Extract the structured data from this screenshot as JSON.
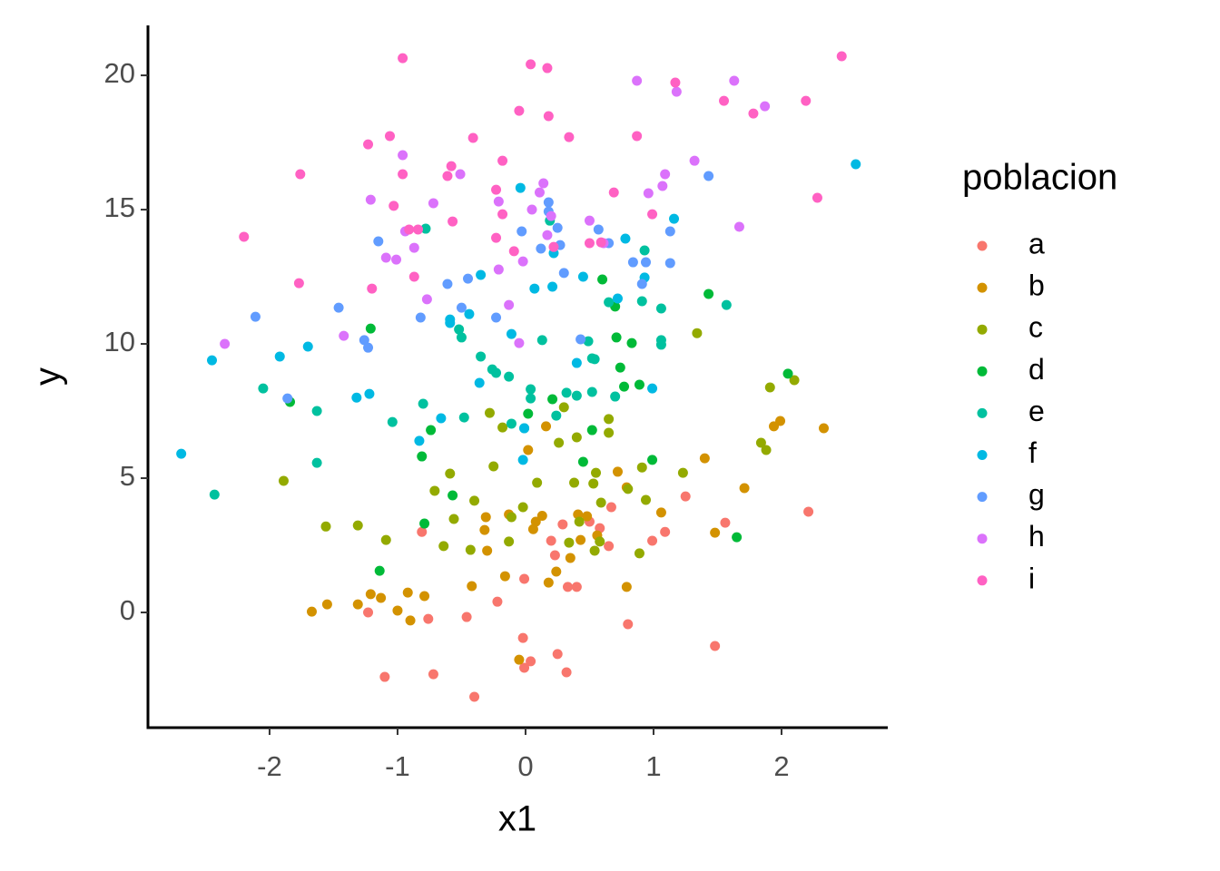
{
  "chart_data": {
    "type": "scatter",
    "x_label": "x1",
    "y_label": "y",
    "legend_title": "poblacion",
    "xlim": [
      -2.95,
      2.83
    ],
    "ylim": [
      -4.29,
      21.86
    ],
    "xticks": [
      -2,
      -1,
      0,
      1,
      2
    ],
    "yticks": [
      0,
      5,
      10,
      15,
      20
    ],
    "grid": false,
    "legend": "right",
    "series": [
      {
        "name": "a",
        "color": "#F8766D",
        "x": [
          -0.81,
          -1.23,
          -1.1,
          -0.76,
          -0.72,
          -0.46,
          -0.4,
          -0.22,
          -0.01,
          -0.02,
          -0.01,
          0.04,
          0.2,
          0.23,
          0.25,
          0.29,
          0.32,
          0.33,
          0.4,
          0.5,
          0.58,
          0.65,
          0.67,
          0.8,
          0.99,
          1.09,
          1.25,
          1.48,
          1.56,
          2.21
        ],
        "y": [
          3.0,
          0.0,
          -2.4,
          -0.24,
          -2.3,
          -0.17,
          -3.14,
          0.4,
          1.25,
          -0.95,
          -2.06,
          -1.82,
          2.67,
          2.13,
          -1.55,
          3.28,
          -2.23,
          0.95,
          0.95,
          3.38,
          3.14,
          2.47,
          3.92,
          -0.44,
          2.67,
          3.0,
          4.32,
          -1.25,
          3.34,
          3.75
        ]
      },
      {
        "name": "b",
        "color": "#D39200",
        "x": [
          -1.67,
          -1.55,
          -1.31,
          -1.21,
          -1.13,
          -1.0,
          -0.92,
          -0.9,
          -0.79,
          -0.42,
          -0.32,
          -0.31,
          -0.3,
          -0.16,
          -0.13,
          -0.05,
          0.02,
          0.06,
          0.08,
          0.13,
          0.16,
          0.18,
          0.24,
          0.35,
          0.41,
          0.43,
          0.48,
          0.56,
          0.72,
          0.79,
          0.79,
          1.06,
          1.4,
          1.48,
          1.71,
          1.94,
          1.99,
          2.33
        ],
        "y": [
          0.03,
          0.3,
          0.3,
          0.68,
          0.54,
          0.07,
          0.74,
          -0.3,
          0.61,
          0.98,
          3.07,
          3.55,
          2.3,
          1.35,
          3.65,
          -1.76,
          6.05,
          3.1,
          3.38,
          3.6,
          6.93,
          1.11,
          1.52,
          2.03,
          3.65,
          2.7,
          3.58,
          2.87,
          5.24,
          0.95,
          4.66,
          3.72,
          5.74,
          2.97,
          4.63,
          6.93,
          7.13,
          6.86
        ]
      },
      {
        "name": "c",
        "color": "#93AA00",
        "x": [
          -1.89,
          -1.56,
          -1.31,
          -1.09,
          -0.71,
          -0.59,
          -0.56,
          -0.64,
          -0.43,
          -0.4,
          -0.28,
          -0.25,
          -0.18,
          -0.13,
          -0.11,
          -0.02,
          0.09,
          0.26,
          0.3,
          0.34,
          0.38,
          0.4,
          0.42,
          0.53,
          0.55,
          0.54,
          0.58,
          0.59,
          0.65,
          0.65,
          0.8,
          0.89,
          0.91,
          0.94,
          1.23,
          1.34,
          1.84,
          1.88,
          1.91,
          2.1
        ],
        "y": [
          4.9,
          3.2,
          3.24,
          2.7,
          4.53,
          5.17,
          3.48,
          2.47,
          2.33,
          4.16,
          7.43,
          5.44,
          6.89,
          2.64,
          3.55,
          3.92,
          4.83,
          6.32,
          7.64,
          2.6,
          4.83,
          6.52,
          3.38,
          4.8,
          5.2,
          2.3,
          2.64,
          4.09,
          7.2,
          6.69,
          4.6,
          2.2,
          5.4,
          4.19,
          5.2,
          10.4,
          6.32,
          6.05,
          8.38,
          8.65
        ]
      },
      {
        "name": "d",
        "color": "#00BA38",
        "x": [
          -1.84,
          -1.21,
          -1.14,
          -0.81,
          -0.79,
          -0.74,
          -0.57,
          0.02,
          0.21,
          0.45,
          0.52,
          0.6,
          0.7,
          0.71,
          0.74,
          0.77,
          0.83,
          0.89,
          0.99,
          1.43,
          1.65,
          2.05
        ],
        "y": [
          7.84,
          10.57,
          1.55,
          5.81,
          3.31,
          6.79,
          4.36,
          7.4,
          7.94,
          5.61,
          6.79,
          12.4,
          11.39,
          10.24,
          9.12,
          8.41,
          10.03,
          8.48,
          5.68,
          11.86,
          2.8,
          8.89
        ]
      },
      {
        "name": "e",
        "color": "#00C19F",
        "x": [
          -2.43,
          -2.05,
          -1.63,
          -1.63,
          -1.04,
          -0.8,
          -0.78,
          -0.52,
          -0.5,
          -0.48,
          -0.35,
          -0.26,
          -0.23,
          -0.13,
          -0.11,
          -0.01,
          0.04,
          0.04,
          0.13,
          0.19,
          0.24,
          0.32,
          0.4,
          0.49,
          0.52,
          0.52,
          0.54,
          0.65,
          0.7,
          0.91,
          0.93,
          1.06,
          1.06,
          1.06,
          1.57
        ],
        "y": [
          4.39,
          8.34,
          7.5,
          5.57,
          7.09,
          7.77,
          14.29,
          10.54,
          10.24,
          7.26,
          9.53,
          9.05,
          8.92,
          8.78,
          7.03,
          6.86,
          8.31,
          7.97,
          10.14,
          14.59,
          7.33,
          8.18,
          8.07,
          10.1,
          9.46,
          8.21,
          9.43,
          11.55,
          8.04,
          11.59,
          13.48,
          11.32,
          10.14,
          9.97,
          11.45
        ]
      },
      {
        "name": "f",
        "color": "#00B9E3",
        "x": [
          -2.69,
          -2.45,
          -1.92,
          -1.7,
          -1.32,
          -1.22,
          -0.83,
          -0.66,
          -0.59,
          -0.59,
          -0.44,
          -0.36,
          -0.35,
          -0.11,
          -0.04,
          -0.02,
          -0.01,
          0.07,
          0.21,
          0.22,
          0.4,
          0.45,
          0.72,
          0.78,
          0.93,
          0.99,
          1.16,
          2.58
        ],
        "y": [
          5.91,
          9.39,
          9.53,
          9.9,
          8.0,
          8.14,
          6.39,
          7.23,
          10.91,
          10.78,
          11.11,
          8.55,
          12.57,
          10.37,
          15.81,
          5.68,
          6.86,
          12.06,
          12.13,
          13.38,
          9.29,
          12.5,
          11.69,
          13.92,
          12.47,
          8.34,
          14.66,
          16.69
        ]
      },
      {
        "name": "g",
        "color": "#619CFF",
        "x": [
          -2.11,
          -1.86,
          -1.46,
          -1.26,
          -1.23,
          -1.15,
          -0.82,
          -0.61,
          -0.5,
          -0.45,
          -0.23,
          -0.03,
          0.12,
          0.18,
          0.18,
          0.25,
          0.27,
          0.3,
          0.43,
          0.57,
          0.65,
          0.84,
          0.91,
          0.94,
          1.13,
          1.13,
          1.43
        ],
        "y": [
          11.01,
          7.97,
          11.35,
          10.14,
          9.86,
          13.82,
          10.98,
          12.23,
          11.35,
          12.43,
          10.98,
          14.19,
          13.55,
          15.27,
          14.93,
          14.32,
          13.68,
          12.64,
          10.17,
          14.26,
          13.75,
          13.04,
          12.23,
          13.04,
          13.01,
          14.19,
          16.25
        ]
      },
      {
        "name": "h",
        "color": "#DB72FB",
        "x": [
          -2.35,
          -1.42,
          -1.21,
          -1.09,
          -1.01,
          -0.96,
          -0.94,
          -0.87,
          -0.77,
          -0.72,
          -0.51,
          -0.21,
          -0.21,
          -0.13,
          -0.02,
          -0.05,
          0.05,
          0.11,
          0.14,
          0.17,
          0.2,
          0.5,
          0.61,
          0.87,
          0.96,
          1.07,
          1.09,
          1.18,
          1.32,
          1.63,
          1.67,
          1.87
        ],
        "y": [
          10.0,
          10.3,
          15.37,
          13.21,
          13.14,
          17.03,
          14.19,
          13.58,
          11.66,
          15.24,
          16.32,
          12.77,
          15.3,
          11.45,
          13.07,
          10.03,
          15.0,
          15.64,
          15.98,
          14.05,
          14.76,
          14.59,
          13.75,
          19.8,
          15.61,
          15.88,
          16.32,
          19.39,
          16.82,
          19.8,
          14.36,
          18.85
        ]
      },
      {
        "name": "i",
        "color": "#FF61C3",
        "x": [
          -2.2,
          -1.77,
          -1.76,
          -1.23,
          -1.2,
          -1.06,
          -1.03,
          -0.96,
          -0.96,
          -0.91,
          -0.87,
          -0.84,
          -0.61,
          -0.58,
          -0.57,
          -0.41,
          -0.23,
          -0.18,
          -0.18,
          -0.23,
          -0.09,
          -0.05,
          0.04,
          0.17,
          0.18,
          0.22,
          0.34,
          0.5,
          0.59,
          0.69,
          0.87,
          0.99,
          1.17,
          1.55,
          1.78,
          2.19,
          2.28,
          2.47
        ],
        "y": [
          13.99,
          12.26,
          16.32,
          17.43,
          12.06,
          17.74,
          15.14,
          20.64,
          16.32,
          14.26,
          12.5,
          14.26,
          16.25,
          16.62,
          14.56,
          17.67,
          15.74,
          16.82,
          14.83,
          13.95,
          13.45,
          18.68,
          20.41,
          20.27,
          18.48,
          13.61,
          17.7,
          13.75,
          13.78,
          15.64,
          17.74,
          14.83,
          19.73,
          19.05,
          18.58,
          19.05,
          15.44,
          20.71
        ]
      }
    ]
  }
}
